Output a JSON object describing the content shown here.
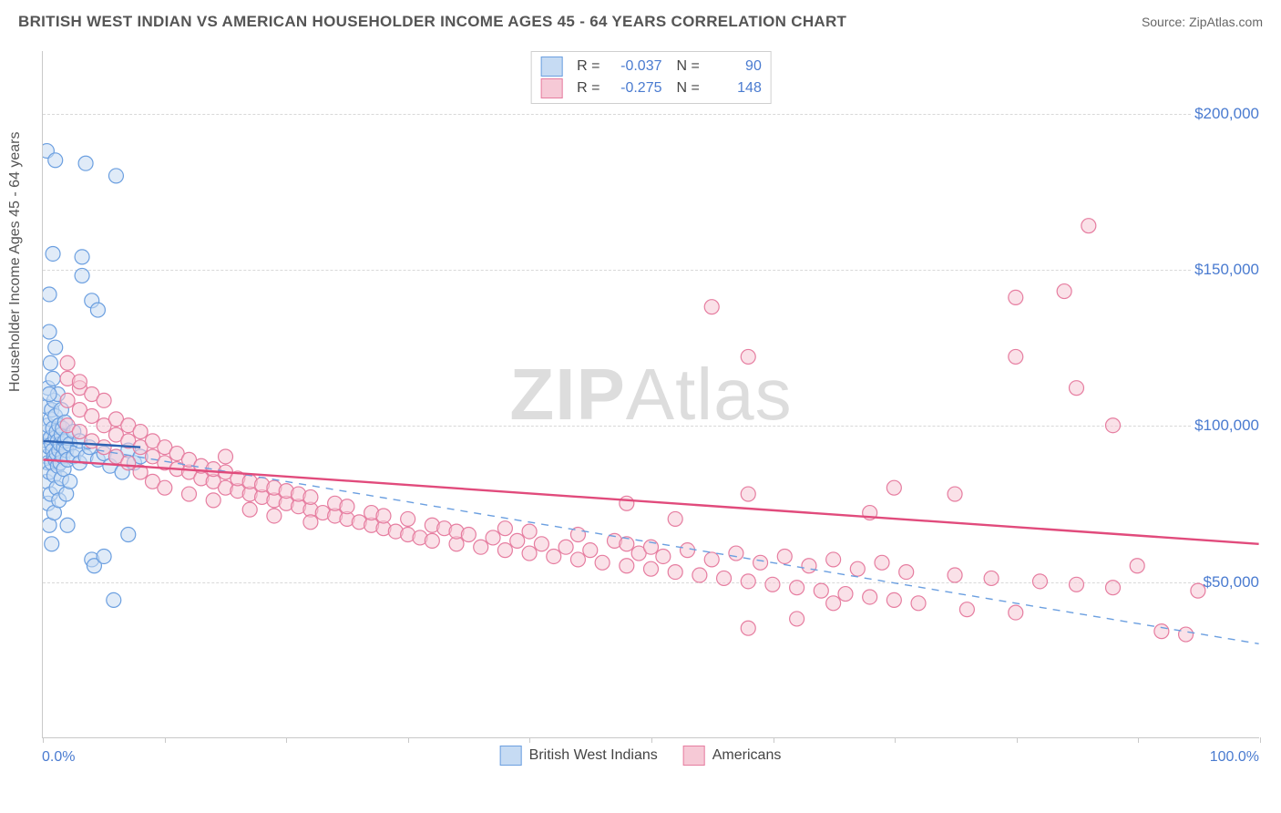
{
  "header": {
    "title": "BRITISH WEST INDIAN VS AMERICAN HOUSEHOLDER INCOME AGES 45 - 64 YEARS CORRELATION CHART",
    "source_label": "Source:",
    "source_value": "ZipAtlas.com"
  },
  "watermark": {
    "zip": "ZIP",
    "atlas": "Atlas"
  },
  "chart": {
    "type": "scatter",
    "ylabel": "Householder Income Ages 45 - 64 years",
    "xlim": [
      0,
      100
    ],
    "ylim": [
      0,
      220000
    ],
    "x_ticks": [
      0,
      10,
      20,
      30,
      40,
      50,
      60,
      70,
      80,
      90,
      100
    ],
    "x_tick_labels": {
      "min": "0.0%",
      "max": "100.0%"
    },
    "y_gridlines": [
      50000,
      100000,
      150000,
      200000
    ],
    "y_tick_labels": [
      "$50,000",
      "$100,000",
      "$150,000",
      "$200,000"
    ],
    "background_color": "#ffffff",
    "grid_color": "#d8d8d8",
    "axis_color": "#c9c9c9",
    "label_color": "#4a7bd0",
    "marker_radius": 8,
    "marker_stroke_width": 1.2,
    "trend_line_width": 2.4,
    "dashed_line_width": 1.4,
    "series": [
      {
        "name": "British West Indians",
        "fill": "#c6dbf3",
        "stroke": "#6b9fe0",
        "fill_opacity": 0.55,
        "stats": {
          "R": "-0.037",
          "N": "90"
        },
        "trend": {
          "x1": 0,
          "y1": 95000,
          "x2": 8,
          "y2": 93000,
          "color": "#2e63b3"
        },
        "dashed_trend": {
          "x1": 0,
          "y1": 95000,
          "x2": 100,
          "y2": 30000,
          "color": "#6b9fe0"
        },
        "points": [
          [
            0.3,
            95000
          ],
          [
            0.3,
            90000
          ],
          [
            0.3,
            106000
          ],
          [
            0.3,
            98000
          ],
          [
            0.3,
            82000
          ],
          [
            0.4,
            100000
          ],
          [
            0.4,
            88000
          ],
          [
            0.4,
            75000
          ],
          [
            0.4,
            112000
          ],
          [
            0.5,
            93000
          ],
          [
            0.5,
            85000
          ],
          [
            0.5,
            130000
          ],
          [
            0.5,
            142000
          ],
          [
            0.5,
            68000
          ],
          [
            0.6,
            96000
          ],
          [
            0.6,
            102000
          ],
          [
            0.6,
            78000
          ],
          [
            0.6,
            120000
          ],
          [
            0.7,
            88000
          ],
          [
            0.7,
            94000
          ],
          [
            0.7,
            105000
          ],
          [
            0.7,
            62000
          ],
          [
            0.8,
            92000
          ],
          [
            0.8,
            99000
          ],
          [
            0.8,
            115000
          ],
          [
            0.8,
            155000
          ],
          [
            0.9,
            90000
          ],
          [
            0.9,
            84000
          ],
          [
            0.9,
            108000
          ],
          [
            0.9,
            72000
          ],
          [
            1.0,
            96000
          ],
          [
            1.0,
            89000
          ],
          [
            1.0,
            103000
          ],
          [
            1.0,
            125000
          ],
          [
            1.1,
            91000
          ],
          [
            1.1,
            98000
          ],
          [
            1.1,
            80000
          ],
          [
            1.2,
            95000
          ],
          [
            1.2,
            110000
          ],
          [
            1.2,
            87000
          ],
          [
            1.3,
            92000
          ],
          [
            1.3,
            100000
          ],
          [
            1.3,
            76000
          ],
          [
            1.4,
            94000
          ],
          [
            1.4,
            88000
          ],
          [
            1.5,
            97000
          ],
          [
            1.5,
            83000
          ],
          [
            1.5,
            105000
          ],
          [
            1.6,
            90000
          ],
          [
            1.6,
            99000
          ],
          [
            1.7,
            93000
          ],
          [
            1.7,
            86000
          ],
          [
            1.8,
            95000
          ],
          [
            1.8,
            101000
          ],
          [
            1.9,
            92000
          ],
          [
            1.9,
            78000
          ],
          [
            2.0,
            96000
          ],
          [
            2.0,
            89000
          ],
          [
            2.2,
            94000
          ],
          [
            2.2,
            82000
          ],
          [
            2.5,
            90000
          ],
          [
            2.5,
            98000
          ],
          [
            2.8,
            92000
          ],
          [
            3.0,
            88000
          ],
          [
            3.0,
            95000
          ],
          [
            3.2,
            148000
          ],
          [
            3.2,
            154000
          ],
          [
            3.5,
            90000
          ],
          [
            3.5,
            184000
          ],
          [
            3.8,
            93000
          ],
          [
            4.0,
            140000
          ],
          [
            4.0,
            57000
          ],
          [
            4.2,
            55000
          ],
          [
            4.5,
            89000
          ],
          [
            4.5,
            137000
          ],
          [
            5.0,
            91000
          ],
          [
            5.0,
            58000
          ],
          [
            5.5,
            87000
          ],
          [
            5.8,
            44000
          ],
          [
            6.0,
            90000
          ],
          [
            6.0,
            180000
          ],
          [
            6.5,
            85000
          ],
          [
            7.0,
            92000
          ],
          [
            7.0,
            65000
          ],
          [
            7.5,
            88000
          ],
          [
            8.0,
            90000
          ],
          [
            0.3,
            188000
          ],
          [
            2.0,
            68000
          ],
          [
            1.0,
            185000
          ],
          [
            0.5,
            110000
          ]
        ]
      },
      {
        "name": "Americans",
        "fill": "#f6c9d6",
        "stroke": "#e67da0",
        "fill_opacity": 0.55,
        "stats": {
          "R": "-0.275",
          "N": "148"
        },
        "trend": {
          "x1": 0,
          "y1": 89000,
          "x2": 100,
          "y2": 62000,
          "color": "#e14b7c"
        },
        "points": [
          [
            2,
            108000
          ],
          [
            2,
            100000
          ],
          [
            2,
            115000
          ],
          [
            3,
            105000
          ],
          [
            3,
            112000
          ],
          [
            3,
            98000
          ],
          [
            4,
            103000
          ],
          [
            4,
            95000
          ],
          [
            4,
            110000
          ],
          [
            5,
            100000
          ],
          [
            5,
            93000
          ],
          [
            5,
            108000
          ],
          [
            6,
            97000
          ],
          [
            6,
            102000
          ],
          [
            6,
            90000
          ],
          [
            7,
            95000
          ],
          [
            7,
            100000
          ],
          [
            7,
            88000
          ],
          [
            8,
            93000
          ],
          [
            8,
            98000
          ],
          [
            8,
            85000
          ],
          [
            9,
            90000
          ],
          [
            9,
            95000
          ],
          [
            9,
            82000
          ],
          [
            10,
            88000
          ],
          [
            10,
            93000
          ],
          [
            10,
            80000
          ],
          [
            11,
            86000
          ],
          [
            11,
            91000
          ],
          [
            12,
            85000
          ],
          [
            12,
            89000
          ],
          [
            12,
            78000
          ],
          [
            13,
            83000
          ],
          [
            13,
            87000
          ],
          [
            14,
            82000
          ],
          [
            14,
            86000
          ],
          [
            14,
            76000
          ],
          [
            15,
            80000
          ],
          [
            15,
            85000
          ],
          [
            15,
            90000
          ],
          [
            16,
            79000
          ],
          [
            16,
            83000
          ],
          [
            17,
            78000
          ],
          [
            17,
            82000
          ],
          [
            17,
            73000
          ],
          [
            18,
            77000
          ],
          [
            18,
            81000
          ],
          [
            19,
            76000
          ],
          [
            19,
            80000
          ],
          [
            19,
            71000
          ],
          [
            20,
            75000
          ],
          [
            20,
            79000
          ],
          [
            21,
            74000
          ],
          [
            21,
            78000
          ],
          [
            22,
            73000
          ],
          [
            22,
            77000
          ],
          [
            22,
            69000
          ],
          [
            23,
            72000
          ],
          [
            24,
            71000
          ],
          [
            24,
            75000
          ],
          [
            25,
            70000
          ],
          [
            25,
            74000
          ],
          [
            26,
            69000
          ],
          [
            27,
            68000
          ],
          [
            27,
            72000
          ],
          [
            28,
            67000
          ],
          [
            28,
            71000
          ],
          [
            29,
            66000
          ],
          [
            30,
            65000
          ],
          [
            30,
            70000
          ],
          [
            31,
            64000
          ],
          [
            32,
            68000
          ],
          [
            32,
            63000
          ],
          [
            33,
            67000
          ],
          [
            34,
            62000
          ],
          [
            34,
            66000
          ],
          [
            35,
            65000
          ],
          [
            36,
            61000
          ],
          [
            37,
            64000
          ],
          [
            38,
            60000
          ],
          [
            38,
            67000
          ],
          [
            39,
            63000
          ],
          [
            40,
            59000
          ],
          [
            40,
            66000
          ],
          [
            41,
            62000
          ],
          [
            42,
            58000
          ],
          [
            43,
            61000
          ],
          [
            44,
            57000
          ],
          [
            44,
            65000
          ],
          [
            45,
            60000
          ],
          [
            46,
            56000
          ],
          [
            47,
            63000
          ],
          [
            48,
            55000
          ],
          [
            48,
            62000
          ],
          [
            49,
            59000
          ],
          [
            50,
            54000
          ],
          [
            50,
            61000
          ],
          [
            51,
            58000
          ],
          [
            52,
            53000
          ],
          [
            53,
            60000
          ],
          [
            54,
            52000
          ],
          [
            55,
            57000
          ],
          [
            56,
            51000
          ],
          [
            57,
            59000
          ],
          [
            58,
            50000
          ],
          [
            58,
            78000
          ],
          [
            59,
            56000
          ],
          [
            60,
            49000
          ],
          [
            61,
            58000
          ],
          [
            62,
            48000
          ],
          [
            63,
            55000
          ],
          [
            64,
            47000
          ],
          [
            65,
            57000
          ],
          [
            66,
            46000
          ],
          [
            67,
            54000
          ],
          [
            68,
            45000
          ],
          [
            69,
            56000
          ],
          [
            70,
            44000
          ],
          [
            71,
            53000
          ],
          [
            72,
            43000
          ],
          [
            55,
            138000
          ],
          [
            58,
            122000
          ],
          [
            75,
            52000
          ],
          [
            76,
            41000
          ],
          [
            78,
            51000
          ],
          [
            80,
            40000
          ],
          [
            82,
            50000
          ],
          [
            58,
            35000
          ],
          [
            62,
            38000
          ],
          [
            85,
            49000
          ],
          [
            88,
            48000
          ],
          [
            90,
            55000
          ],
          [
            92,
            34000
          ],
          [
            94,
            33000
          ],
          [
            95,
            47000
          ],
          [
            86,
            164000
          ],
          [
            80,
            141000
          ],
          [
            84,
            143000
          ],
          [
            80,
            122000
          ],
          [
            85,
            112000
          ],
          [
            88,
            100000
          ],
          [
            70,
            80000
          ],
          [
            75,
            78000
          ],
          [
            65,
            43000
          ],
          [
            68,
            72000
          ],
          [
            52,
            70000
          ],
          [
            48,
            75000
          ],
          [
            3,
            114000
          ],
          [
            2,
            120000
          ]
        ]
      }
    ]
  }
}
